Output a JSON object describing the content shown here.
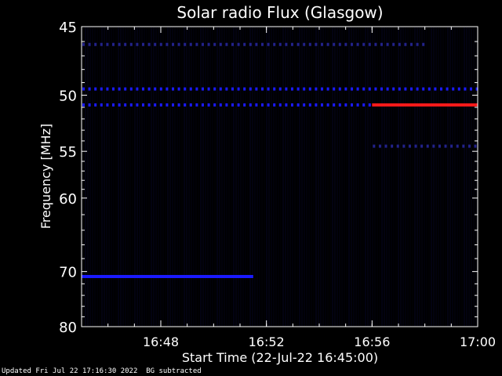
{
  "footer": {
    "updated": "Updated Fri Jul 22 17:16:30 2022",
    "note": "BG subtracted"
  },
  "chart_data": {
    "type": "heatmap",
    "title": "Solar radio Flux (Glasgow)",
    "xlabel": "Start Time (22-Jul-22 16:45:00)",
    "ylabel": "Frequency [MHz]",
    "xlim": [
      "16:45",
      "17:00"
    ],
    "ylim": [
      45,
      80
    ],
    "y_scale": "reciprocal",
    "x_ticks": [
      "16:48",
      "16:52",
      "16:56",
      "17:00"
    ],
    "y_ticks": [
      45,
      50,
      55,
      60,
      70,
      80
    ],
    "colors": {
      "background": "#000000",
      "low": "#05051f",
      "mid": "#1a1aff",
      "high": "#ff1a1a"
    },
    "features": [
      {
        "kind": "dotted-band",
        "freq": 46.2,
        "from": "16:45",
        "to": "16:58",
        "intensity": "low"
      },
      {
        "kind": "dotted-band",
        "freq": 49.5,
        "from": "16:45",
        "to": "17:00",
        "intensity": "mid"
      },
      {
        "kind": "dotted-band",
        "freq": 50.8,
        "from": "16:45",
        "to": "16:56",
        "intensity": "mid"
      },
      {
        "kind": "band",
        "freq": 50.8,
        "from": "16:56",
        "to": "17:00",
        "intensity": "high"
      },
      {
        "kind": "dotted-band",
        "freq": 54.5,
        "from": "16:56",
        "to": "17:00",
        "intensity": "low"
      },
      {
        "kind": "band",
        "freq": 70.8,
        "from": "16:45",
        "to": "16:51:30",
        "intensity": "mid"
      }
    ]
  }
}
